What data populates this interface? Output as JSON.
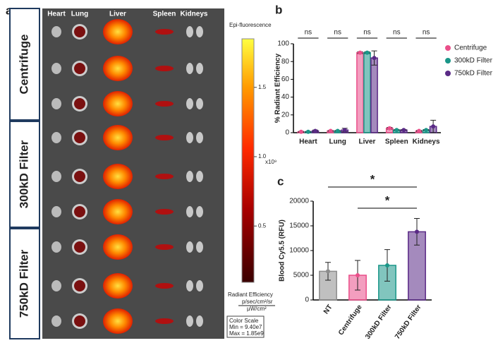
{
  "panel_a": {
    "letter": "a",
    "rows": [
      "Centrifuge",
      "300kD Filter",
      "750kD Filter"
    ],
    "columns": [
      "Heart",
      "Lung",
      "Liver",
      "Spleen",
      "Kidneys"
    ],
    "colorbar": {
      "title": "Epi-fluorescence",
      "clim": [
        0.094,
        1.85
      ],
      "ticks": [
        {
          "value": 0.5,
          "label": "0.5"
        },
        {
          "value": 1.0,
          "label": "1.0"
        },
        {
          "value": 1.5,
          "label": "1.5"
        }
      ],
      "exponent": "x10⁹",
      "unit_title": "Radiant Efficiency",
      "unit_num": "p/sec/cm²/sr",
      "unit_den": "µW/cm²",
      "scale_title": "Color Scale",
      "scale_min": "Min = 9.40e7",
      "scale_max": "Max = 1.85e9"
    }
  },
  "chart_data": [
    {
      "type": "bar",
      "letter": "b",
      "ylabel": "% Radiant Efficiency",
      "categories": [
        "Heart",
        "Lung",
        "Liver",
        "Spleen",
        "Kidneys"
      ],
      "series": [
        {
          "name": "Centrifuge",
          "color": "#ea4f8a",
          "values": [
            1,
            2,
            90,
            5,
            2
          ],
          "errors": [
            0.5,
            0.5,
            1,
            1,
            0.5
          ]
        },
        {
          "name": "300kD Filter",
          "color": "#1a9688",
          "values": [
            1,
            2,
            90,
            3,
            3
          ],
          "errors": [
            0.5,
            0.5,
            1,
            0.5,
            0.5
          ]
        },
        {
          "name": "750kD Filter",
          "color": "#5a2a86",
          "values": [
            2,
            3,
            84,
            3,
            7
          ],
          "errors": [
            1,
            2,
            8,
            0.5,
            7
          ]
        }
      ],
      "ylim": [
        0,
        100
      ],
      "yticks": [
        0,
        20,
        40,
        60,
        80,
        100
      ],
      "significance": [
        "ns",
        "ns",
        "ns",
        "ns",
        "ns"
      ]
    },
    {
      "type": "bar",
      "letter": "c",
      "ylabel": "Blood Cy5.5 (RFU)",
      "categories": [
        "NT",
        "Centrifuge",
        "300kD Filter",
        "750kD Filter"
      ],
      "colors": [
        "#8c8c8c",
        "#ea4f8a",
        "#1a9688",
        "#5a2a86"
      ],
      "values": [
        5800,
        5000,
        7000,
        13800
      ],
      "errors": [
        1800,
        3000,
        3200,
        2700
      ],
      "ylim": [
        0,
        20000
      ],
      "yticks": [
        0,
        5000,
        10000,
        15000,
        20000
      ],
      "significance": [
        "*",
        "*"
      ]
    }
  ]
}
